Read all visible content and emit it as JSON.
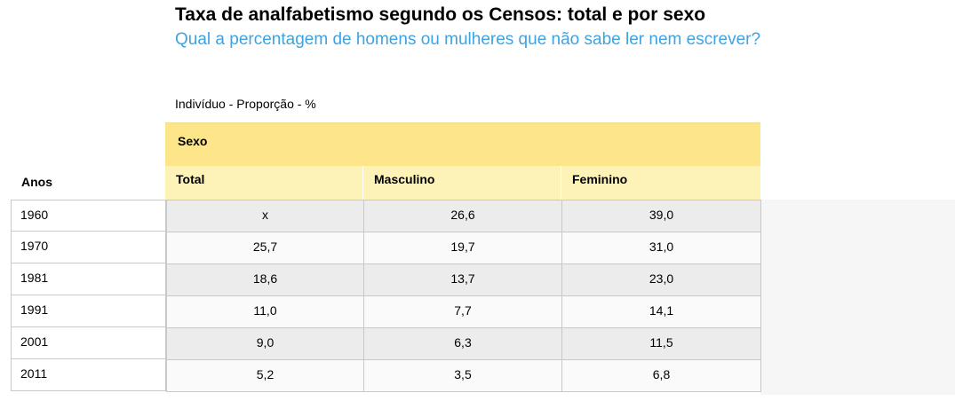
{
  "header": {
    "title": "Taxa de analfabetismo segundo os Censos: total e por sexo",
    "subtitle": "Qual a percentagem de homens ou mulheres que não sabe ler nem escrever?",
    "unit_label": "Indivíduo - Proporção - %"
  },
  "colors": {
    "subtitle": "#3ea3e0",
    "group_header_bg": "#fde68a",
    "column_header_bg": "#fef3b6",
    "row_shade": "#ececec"
  },
  "table": {
    "row_header_label": "Anos",
    "group_label": "Sexo",
    "columns": [
      "Total",
      "Masculino",
      "Feminino"
    ],
    "rows": [
      {
        "year": "1960",
        "values": [
          "x",
          "26,6",
          "39,0"
        ]
      },
      {
        "year": "1970",
        "values": [
          "25,7",
          "19,7",
          "31,0"
        ]
      },
      {
        "year": "1981",
        "values": [
          "18,6",
          "13,7",
          "23,0"
        ]
      },
      {
        "year": "1991",
        "values": [
          "11,0",
          "7,7",
          "14,1"
        ]
      },
      {
        "year": "2001",
        "values": [
          "9,0",
          "6,3",
          "11,5"
        ]
      },
      {
        "year": "2011",
        "values": [
          "5,2",
          "3,5",
          "6,8"
        ]
      }
    ]
  }
}
